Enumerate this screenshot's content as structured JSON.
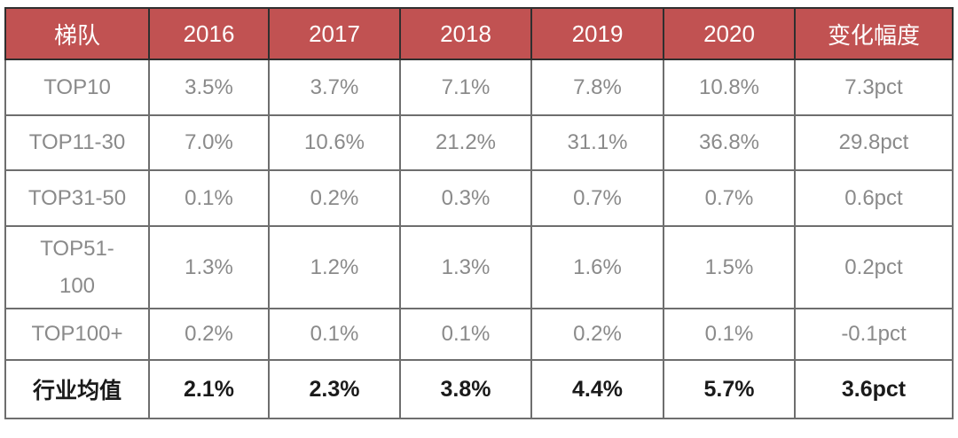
{
  "colors": {
    "header_bg": "#c15252",
    "header_text": "#ffffff",
    "body_text": "#8a8a8a",
    "summary_text": "#1a1a1a",
    "grid_border": "#6e6e6e"
  },
  "table": {
    "columns": [
      "梯队",
      "2016",
      "2017",
      "2018",
      "2019",
      "2020",
      "变化幅度"
    ],
    "rows": [
      {
        "label": "TOP10",
        "values": [
          "3.5%",
          "3.7%",
          "7.1%",
          "7.8%",
          "10.8%",
          "7.3pct"
        ],
        "bold": false,
        "wrap": false
      },
      {
        "label": "TOP11-30",
        "values": [
          "7.0%",
          "10.6%",
          "21.2%",
          "31.1%",
          "36.8%",
          "29.8pct"
        ],
        "bold": false,
        "wrap": false
      },
      {
        "label": "TOP31-50",
        "values": [
          "0.1%",
          "0.2%",
          "0.3%",
          "0.7%",
          "0.7%",
          "0.6pct"
        ],
        "bold": false,
        "wrap": false
      },
      {
        "label": "TOP51-100",
        "values": [
          "1.3%",
          "1.2%",
          "1.3%",
          "1.6%",
          "1.5%",
          "0.2pct"
        ],
        "bold": false,
        "wrap": true
      },
      {
        "label": "TOP100+",
        "values": [
          "0.2%",
          "0.1%",
          "0.1%",
          "0.2%",
          "0.1%",
          "-0.1pct"
        ],
        "bold": false,
        "wrap": false
      },
      {
        "label": "行业均值",
        "values": [
          "2.1%",
          "2.3%",
          "3.8%",
          "4.4%",
          "5.7%",
          "3.6pct"
        ],
        "bold": true,
        "wrap": false
      }
    ]
  },
  "chart_data": {
    "type": "table",
    "title": "",
    "columns": [
      "梯队",
      "2016",
      "2017",
      "2018",
      "2019",
      "2020",
      "变化幅度"
    ],
    "rows": [
      [
        "TOP10",
        "3.5%",
        "3.7%",
        "7.1%",
        "7.8%",
        "10.8%",
        "7.3pct"
      ],
      [
        "TOP11-30",
        "7.0%",
        "10.6%",
        "21.2%",
        "31.1%",
        "36.8%",
        "29.8pct"
      ],
      [
        "TOP31-50",
        "0.1%",
        "0.2%",
        "0.3%",
        "0.7%",
        "0.7%",
        "0.6pct"
      ],
      [
        "TOP51-100",
        "1.3%",
        "1.2%",
        "1.3%",
        "1.6%",
        "1.5%",
        "0.2pct"
      ],
      [
        "TOP100+",
        "0.2%",
        "0.1%",
        "0.1%",
        "0.2%",
        "0.1%",
        "-0.1pct"
      ],
      [
        "行业均值",
        "2.1%",
        "2.3%",
        "3.8%",
        "4.4%",
        "5.7%",
        "3.6pct"
      ]
    ]
  }
}
